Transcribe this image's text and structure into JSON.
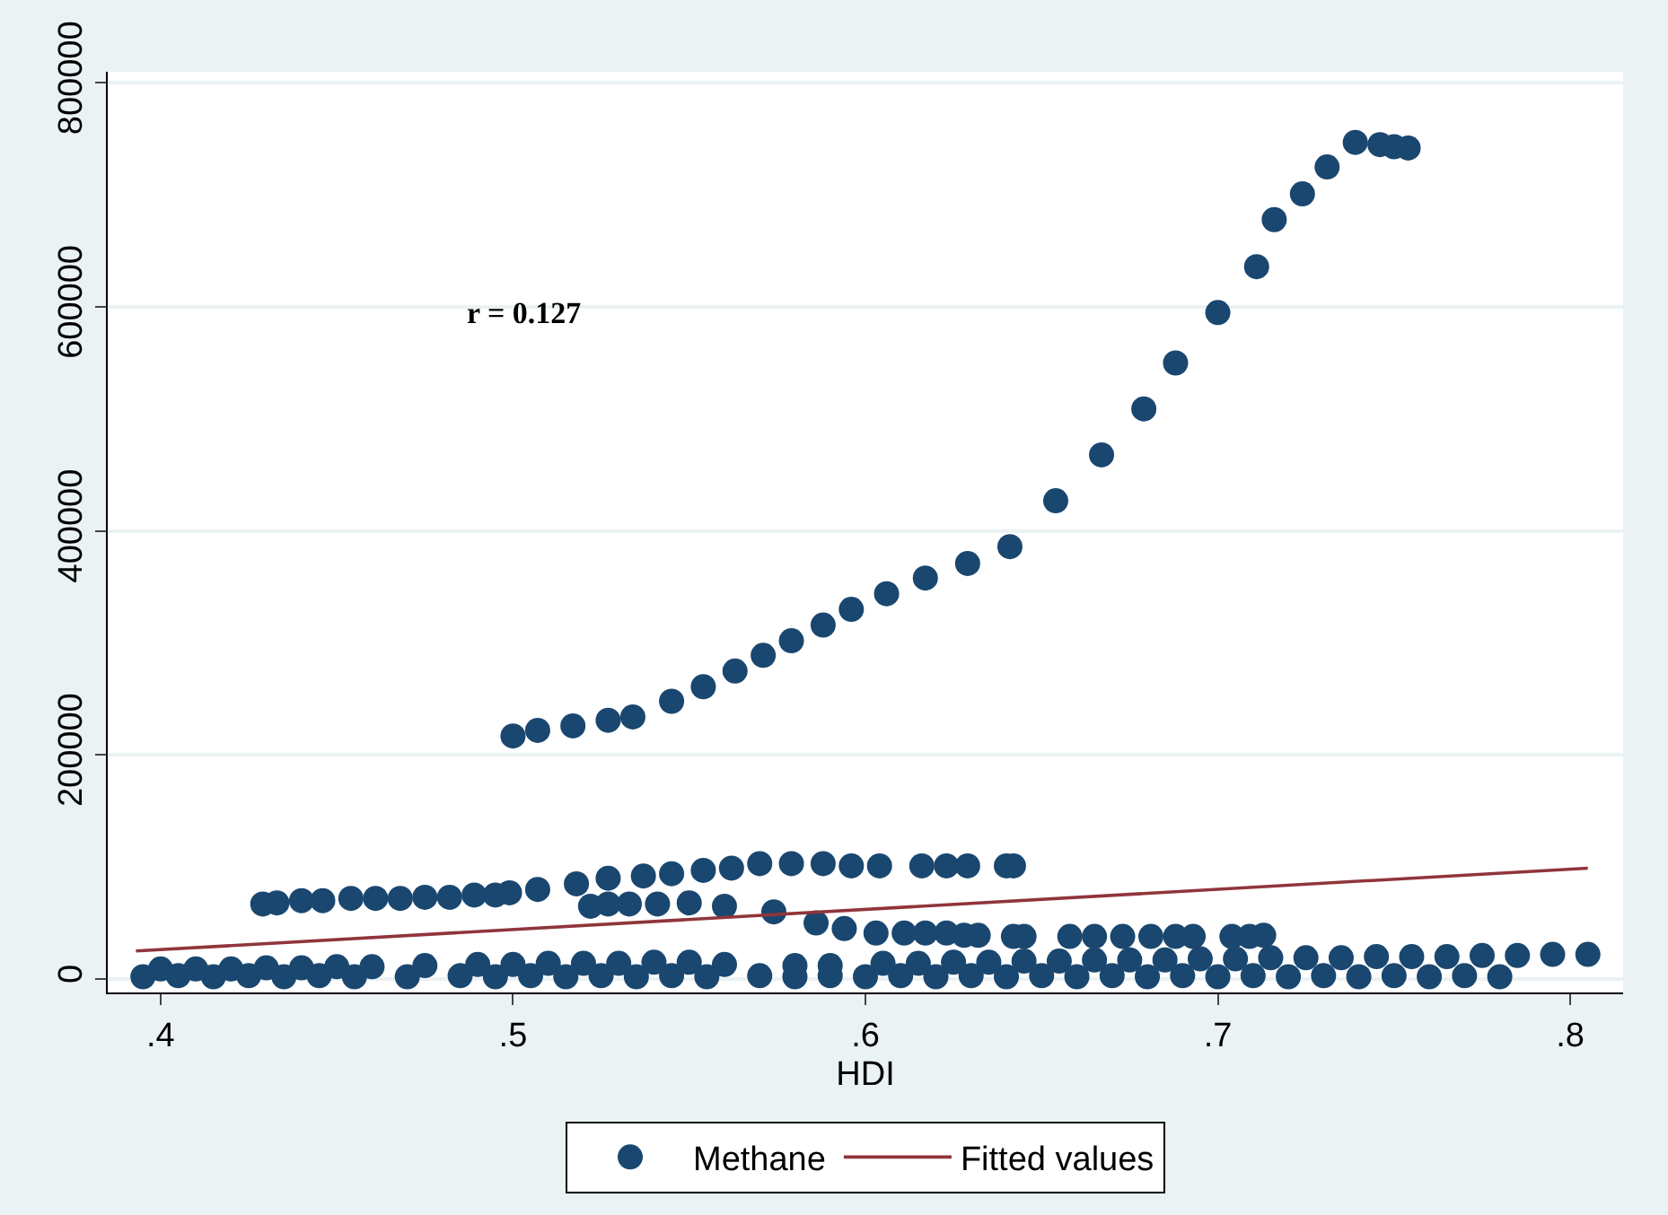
{
  "chart_data": {
    "type": "scatter",
    "xlabel": "HDI",
    "xlim": [
      0.385,
      0.815
    ],
    "ylim": [
      -12000,
      810000
    ],
    "xticks": [
      {
        "value": 0.4,
        "label": ".4"
      },
      {
        "value": 0.5,
        "label": ".5"
      },
      {
        "value": 0.6,
        "label": ".6"
      },
      {
        "value": 0.7,
        "label": ".7"
      },
      {
        "value": 0.8,
        "label": ".8"
      }
    ],
    "yticks": [
      0,
      200000,
      400000,
      600000,
      800000
    ],
    "grid": "y",
    "legend": "bottom",
    "marker": "circle",
    "annotations": [
      "r = 0.127"
    ],
    "series": [
      {
        "name": "Methane",
        "color": "#1a476f",
        "x": [
          0.5,
          0.507,
          0.517,
          0.527,
          0.534,
          0.545,
          0.554,
          0.563,
          0.571,
          0.579,
          0.588,
          0.596,
          0.606,
          0.617,
          0.629,
          0.641,
          0.654,
          0.667,
          0.679,
          0.688,
          0.7,
          0.711,
          0.716,
          0.724,
          0.731,
          0.739,
          0.746,
          0.75,
          0.754,
          0.429,
          0.433,
          0.44,
          0.446,
          0.454,
          0.461,
          0.468,
          0.475,
          0.482,
          0.489,
          0.495,
          0.499,
          0.507,
          0.518,
          0.527,
          0.537,
          0.545,
          0.554,
          0.562,
          0.57,
          0.579,
          0.588,
          0.596,
          0.604,
          0.616,
          0.623,
          0.629,
          0.64,
          0.642,
          0.522,
          0.527,
          0.533,
          0.541,
          0.55,
          0.56,
          0.574,
          0.586,
          0.594,
          0.603,
          0.611,
          0.617,
          0.623,
          0.628,
          0.632,
          0.642,
          0.645,
          0.658,
          0.665,
          0.673,
          0.681,
          0.688,
          0.693,
          0.704,
          0.709,
          0.713,
          0.395,
          0.405,
          0.415,
          0.425,
          0.435,
          0.445,
          0.455,
          0.47,
          0.485,
          0.495,
          0.505,
          0.515,
          0.525,
          0.535,
          0.545,
          0.555,
          0.57,
          0.58,
          0.59,
          0.6,
          0.61,
          0.62,
          0.63,
          0.64,
          0.65,
          0.66,
          0.67,
          0.68,
          0.69,
          0.7,
          0.71,
          0.72,
          0.73,
          0.74,
          0.75,
          0.76,
          0.77,
          0.78,
          0.4,
          0.41,
          0.42,
          0.43,
          0.44,
          0.45,
          0.46,
          0.475,
          0.49,
          0.5,
          0.51,
          0.52,
          0.53,
          0.54,
          0.55,
          0.56,
          0.58,
          0.59,
          0.605,
          0.615,
          0.625,
          0.635,
          0.645,
          0.655,
          0.665,
          0.675,
          0.685,
          0.695,
          0.705,
          0.715,
          0.725,
          0.735,
          0.745,
          0.755,
          0.765,
          0.775,
          0.785,
          0.795,
          0.805
        ],
        "values": [
          217000,
          222000,
          226000,
          231000,
          234000,
          248000,
          261000,
          275000,
          289000,
          302000,
          316000,
          330000,
          344000,
          358000,
          371000,
          386000,
          427000,
          468000,
          509000,
          550000,
          595000,
          636000,
          678000,
          701000,
          725000,
          747000,
          745000,
          743000,
          742000,
          67000,
          68000,
          70000,
          70000,
          72000,
          72000,
          72000,
          73000,
          73000,
          75000,
          75000,
          77000,
          80000,
          85000,
          90000,
          92000,
          94000,
          97000,
          99000,
          103000,
          103000,
          103000,
          101000,
          101000,
          101000,
          101000,
          101000,
          101000,
          101000,
          65000,
          67000,
          67000,
          67000,
          68000,
          65000,
          60000,
          50000,
          45000,
          41000,
          41000,
          41000,
          41000,
          39000,
          39000,
          38000,
          38000,
          38000,
          38000,
          38000,
          38000,
          38000,
          38000,
          38000,
          38000,
          39000,
          2000,
          3000,
          2000,
          3000,
          2000,
          3000,
          2000,
          2000,
          3000,
          2000,
          3000,
          2000,
          3000,
          2000,
          3000,
          2000,
          3000,
          2000,
          3000,
          2000,
          3000,
          2000,
          3000,
          2000,
          3000,
          2000,
          3000,
          2000,
          3000,
          2000,
          3000,
          2000,
          3000,
          2000,
          3000,
          2000,
          3000,
          2000,
          9000,
          9000,
          9000,
          10000,
          10000,
          11000,
          11000,
          12000,
          13000,
          13000,
          14000,
          14000,
          14000,
          15000,
          15000,
          13000,
          12000,
          12000,
          14000,
          14000,
          15000,
          15000,
          16000,
          16000,
          17000,
          17000,
          17000,
          18000,
          18000,
          19000,
          19000,
          19000,
          20000,
          20000,
          20000,
          21000,
          21000,
          22000,
          22000
        ]
      },
      {
        "name": "Fitted values",
        "type": "line",
        "color": "#90353b",
        "marker": "none",
        "line_style": "solid",
        "x": [
          0.393,
          0.805
        ],
        "values": [
          25000,
          99000
        ]
      }
    ]
  }
}
